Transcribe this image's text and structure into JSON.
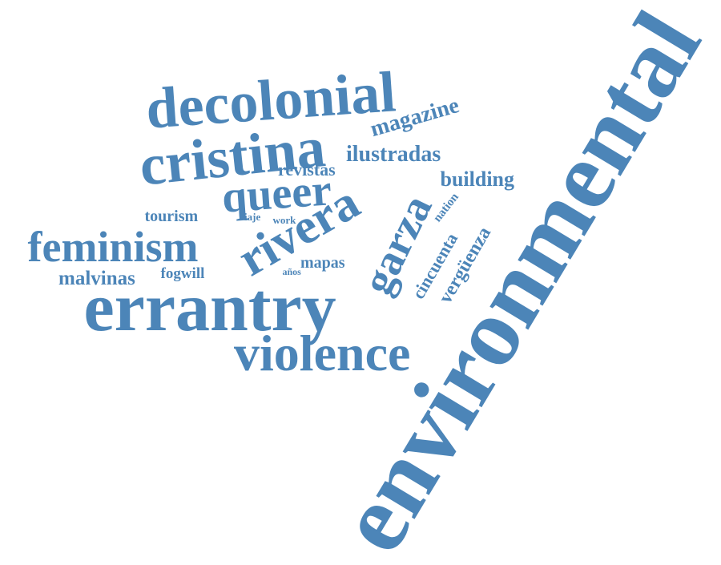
{
  "color": "#4c85b8",
  "words": [
    {
      "text": "environmental",
      "weight": 1.0,
      "orientation": "rotated-up-diagonal"
    },
    {
      "text": "errantry",
      "weight": 0.78,
      "orientation": "horizontal"
    },
    {
      "text": "decolonial",
      "weight": 0.72,
      "orientation": "horizontal"
    },
    {
      "text": "cristina",
      "weight": 0.72,
      "orientation": "horizontal"
    },
    {
      "text": "violence",
      "weight": 0.64,
      "orientation": "horizontal"
    },
    {
      "text": "rivera",
      "weight": 0.62,
      "orientation": "rotated-up-diagonal"
    },
    {
      "text": "queer",
      "weight": 0.58,
      "orientation": "horizontal"
    },
    {
      "text": "feminism",
      "weight": 0.56,
      "orientation": "horizontal"
    },
    {
      "text": "garza",
      "weight": 0.56,
      "orientation": "rotated-up-diagonal"
    },
    {
      "text": "magazine",
      "weight": 0.3,
      "orientation": "rotated-up-slight"
    },
    {
      "text": "ilustradas",
      "weight": 0.28,
      "orientation": "horizontal"
    },
    {
      "text": "building",
      "weight": 0.26,
      "orientation": "horizontal"
    },
    {
      "text": "malvinas",
      "weight": 0.24,
      "orientation": "horizontal"
    },
    {
      "text": "revistas",
      "weight": 0.2,
      "orientation": "horizontal"
    },
    {
      "text": "tourism",
      "weight": 0.19,
      "orientation": "horizontal"
    },
    {
      "text": "mapas",
      "weight": 0.19,
      "orientation": "horizontal"
    },
    {
      "text": "fogwill",
      "weight": 0.19,
      "orientation": "horizontal"
    },
    {
      "text": "cincuenta",
      "weight": 0.22,
      "orientation": "rotated-up-diagonal"
    },
    {
      "text": "vergüenza",
      "weight": 0.24,
      "orientation": "rotated-up-diagonal"
    },
    {
      "text": "nation",
      "weight": 0.15,
      "orientation": "rotated-up-diagonal"
    },
    {
      "text": "viaje",
      "weight": 0.13,
      "orientation": "horizontal"
    },
    {
      "text": "work",
      "weight": 0.13,
      "orientation": "horizontal"
    },
    {
      "text": "años",
      "weight": 0.13,
      "orientation": "horizontal"
    }
  ]
}
